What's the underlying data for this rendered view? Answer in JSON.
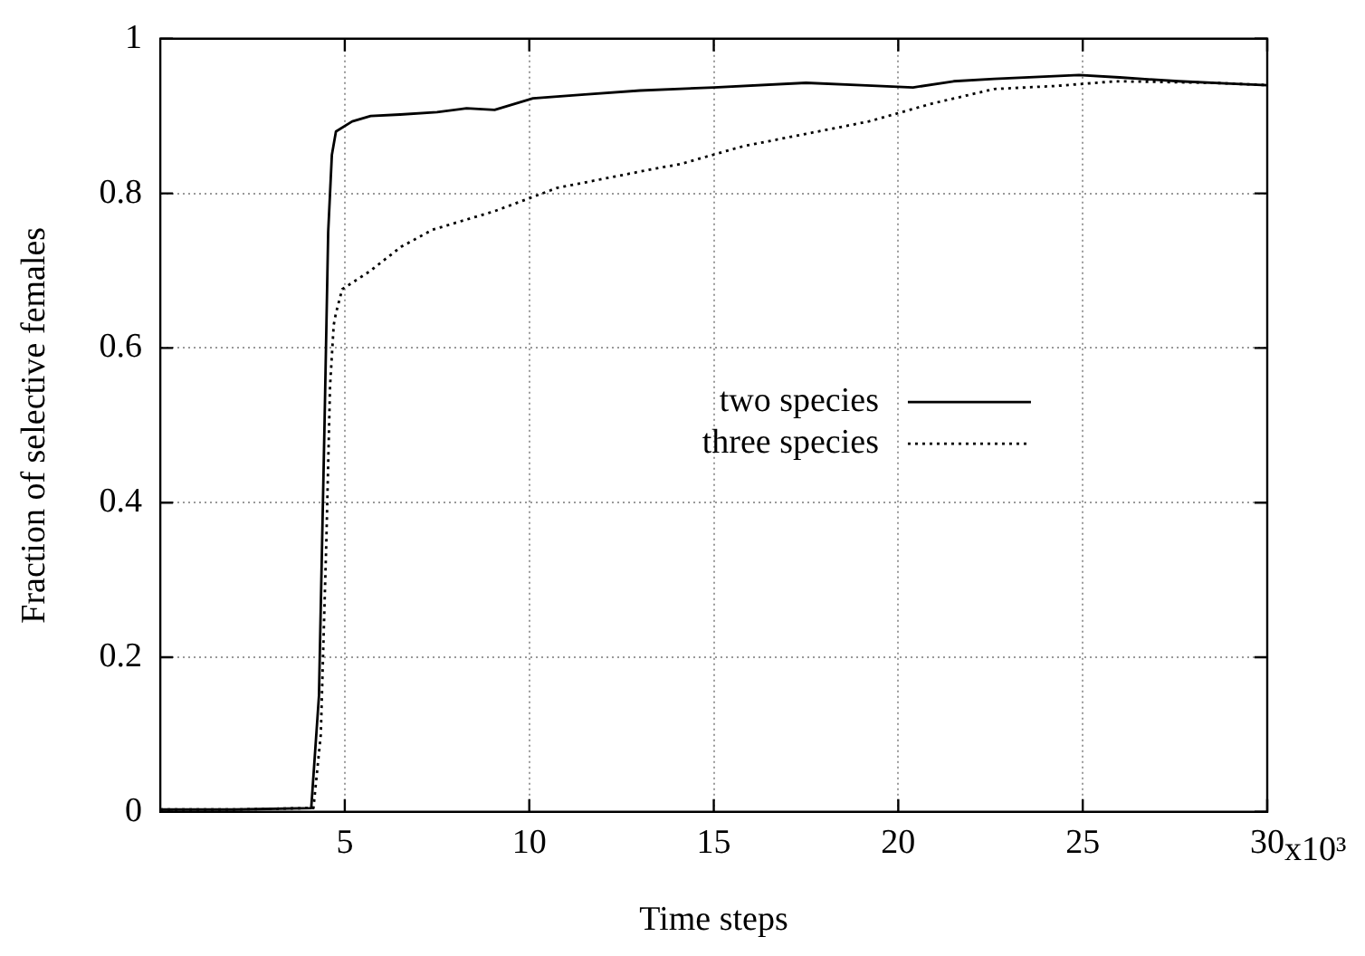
{
  "chart_data": {
    "type": "line",
    "xlabel": "Time steps",
    "ylabel": "Fraction of selective females",
    "xlim": [
      0,
      30
    ],
    "ylim": [
      0,
      1
    ],
    "xticks": [
      5,
      10,
      15,
      20,
      25,
      30
    ],
    "yticks": [
      0,
      0.2,
      0.4,
      0.6,
      0.8,
      1
    ],
    "annotations": [
      "x10³"
    ],
    "grid": true,
    "legend": "right",
    "marker": "none",
    "series": [
      {
        "name": "two species",
        "color": "#000000",
        "line_style": "solid",
        "x": [
          0,
          2,
          4.09,
          4.3,
          4.45,
          4.55,
          4.65,
          4.76,
          5.2,
          5.7,
          6.5,
          7.5,
          8.3,
          9.06,
          10.1,
          11.5,
          13,
          15,
          17.5,
          19,
          20.4,
          21.5,
          22.6,
          24.9,
          26,
          27.6,
          29,
          30
        ],
        "values": [
          0.003,
          0.003,
          0.005,
          0.15,
          0.5,
          0.75,
          0.85,
          0.88,
          0.893,
          0.9,
          0.902,
          0.905,
          0.91,
          0.908,
          0.923,
          0.928,
          0.933,
          0.937,
          0.943,
          0.94,
          0.937,
          0.945,
          0.948,
          0.953,
          0.95,
          0.945,
          0.942,
          0.94
        ]
      },
      {
        "name": "three species",
        "color": "#000000",
        "line_style": "dotted",
        "x": [
          0,
          2,
          4.15,
          4.35,
          4.5,
          4.6,
          4.7,
          4.76,
          4.93,
          5.67,
          6.53,
          7.38,
          9.06,
          10.75,
          13.3,
          14.1,
          15.8,
          17.5,
          19.2,
          20.9,
          22.6,
          24.3,
          25.9,
          28.5,
          30
        ],
        "values": [
          0.003,
          0.003,
          0.005,
          0.1,
          0.35,
          0.55,
          0.63,
          0.645,
          0.676,
          0.699,
          0.731,
          0.753,
          0.777,
          0.807,
          0.831,
          0.838,
          0.861,
          0.877,
          0.893,
          0.916,
          0.935,
          0.939,
          0.945,
          0.943,
          0.94
        ]
      }
    ]
  }
}
